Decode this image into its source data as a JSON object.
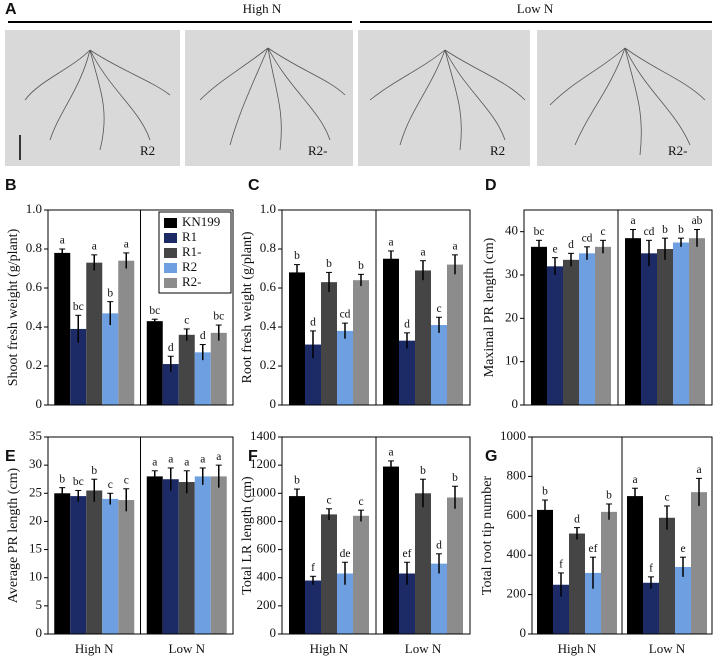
{
  "panel_a": {
    "label": "A",
    "conditions": [
      "High N",
      "Low N"
    ],
    "images": [
      "R2",
      "R2-",
      "R2",
      "R2-"
    ]
  },
  "chart_data": [
    {
      "type": "bar",
      "panel": "B",
      "ylabel": "Shoot fresh weight (g/plant)",
      "categories": [
        null,
        null
      ],
      "ylim": [
        0,
        1
      ],
      "yticks": [
        0,
        0.2,
        0.4,
        0.6,
        0.8,
        {
          "value": 1,
          "label": "1.0"
        }
      ],
      "legend": "upper right",
      "series": [
        {
          "name": "KN199",
          "color": "#000000",
          "values": [
            0.78,
            0.43
          ],
          "errors": [
            0.02,
            0.01
          ],
          "letters": [
            "a",
            "bc"
          ]
        },
        {
          "name": "R1",
          "color": "#1c2a66",
          "values": [
            0.39,
            0.21
          ],
          "errors": [
            0.07,
            0.04
          ],
          "letters": [
            "bc",
            "d"
          ]
        },
        {
          "name": "R1-",
          "color": "#454545",
          "values": [
            0.73,
            0.36
          ],
          "errors": [
            0.04,
            0.03
          ],
          "letters": [
            "a",
            "c"
          ]
        },
        {
          "name": "R2",
          "color": "#6e9fe0",
          "values": [
            0.47,
            0.27
          ],
          "errors": [
            0.06,
            0.04
          ],
          "letters": [
            "b",
            "d"
          ]
        },
        {
          "name": "R2-",
          "color": "#8c8c8c",
          "values": [
            0.74,
            0.37
          ],
          "errors": [
            0.04,
            0.04
          ],
          "letters": [
            "a",
            "bc"
          ]
        }
      ]
    },
    {
      "type": "bar",
      "panel": "C",
      "ylabel": "Root fresh weight (g/plant)",
      "categories": [
        null,
        null
      ],
      "ylim": [
        0,
        1
      ],
      "yticks": [
        0,
        0.2,
        0.4,
        0.6,
        0.8,
        {
          "value": 1,
          "label": "1.0"
        }
      ],
      "series": [
        {
          "color": "#000000",
          "values": [
            0.68,
            0.75
          ],
          "errors": [
            0.04,
            0.04
          ],
          "letters": [
            "b",
            "a"
          ]
        },
        {
          "color": "#1c2a66",
          "values": [
            0.31,
            0.33
          ],
          "errors": [
            0.07,
            0.04
          ],
          "letters": [
            "d",
            "d"
          ]
        },
        {
          "color": "#454545",
          "values": [
            0.63,
            0.69
          ],
          "errors": [
            0.05,
            0.05
          ],
          "letters": [
            "b",
            "a"
          ]
        },
        {
          "color": "#6e9fe0",
          "values": [
            0.38,
            0.41
          ],
          "errors": [
            0.04,
            0.04
          ],
          "letters": [
            "cd",
            "c"
          ]
        },
        {
          "color": "#8c8c8c",
          "values": [
            0.64,
            0.72
          ],
          "errors": [
            0.03,
            0.05
          ],
          "letters": [
            "b",
            "a"
          ]
        }
      ]
    },
    {
      "type": "bar",
      "panel": "D",
      "ylabel": "Maximal PR length (cm)",
      "categories": [
        null,
        null
      ],
      "ylim": [
        0,
        45
      ],
      "yticks": [
        0,
        10,
        20,
        30,
        40
      ],
      "series": [
        {
          "color": "#000000",
          "values": [
            36.5,
            38.5
          ],
          "errors": [
            1.5,
            2
          ],
          "letters": [
            "bc",
            "a"
          ]
        },
        {
          "color": "#1c2a66",
          "values": [
            32,
            35
          ],
          "errors": [
            2,
            3
          ],
          "letters": [
            "e",
            "cd"
          ]
        },
        {
          "color": "#454545",
          "values": [
            33.5,
            36
          ],
          "errors": [
            1.5,
            2.5
          ],
          "letters": [
            "d",
            "b"
          ]
        },
        {
          "color": "#6e9fe0",
          "values": [
            35,
            37.5
          ],
          "errors": [
            1.5,
            1
          ],
          "letters": [
            "cd",
            "b"
          ]
        },
        {
          "color": "#8c8c8c",
          "values": [
            36.5,
            38.5
          ],
          "errors": [
            1.5,
            2
          ],
          "letters": [
            "c",
            "ab"
          ]
        }
      ]
    },
    {
      "type": "bar",
      "panel": "E",
      "ylabel": "Average PR length (cm)",
      "categories": [
        "High N",
        "Low N"
      ],
      "ylim": [
        0,
        35
      ],
      "yticks": [
        0,
        5,
        10,
        15,
        20,
        25,
        30,
        35
      ],
      "series": [
        {
          "color": "#000000",
          "values": [
            25,
            28
          ],
          "errors": [
            1,
            1
          ],
          "letters": [
            "b",
            "a"
          ]
        },
        {
          "color": "#1c2a66",
          "values": [
            24.5,
            27.5
          ],
          "errors": [
            1,
            2
          ],
          "letters": [
            "bc",
            "a"
          ]
        },
        {
          "color": "#454545",
          "values": [
            25.5,
            27
          ],
          "errors": [
            2,
            2
          ],
          "letters": [
            "b",
            "a"
          ]
        },
        {
          "color": "#6e9fe0",
          "values": [
            24,
            28
          ],
          "errors": [
            1,
            1.5
          ],
          "letters": [
            "c",
            "a"
          ]
        },
        {
          "color": "#8c8c8c",
          "values": [
            23.8,
            28
          ],
          "errors": [
            2,
            2
          ],
          "letters": [
            "c",
            "a"
          ]
        }
      ]
    },
    {
      "type": "bar",
      "panel": "F",
      "ylabel": "Total LR length (cm)",
      "categories": [
        "High N",
        "Low N"
      ],
      "ylim": [
        0,
        1400
      ],
      "yticks": [
        0,
        200,
        400,
        600,
        800,
        1000,
        1200,
        1400
      ],
      "series": [
        {
          "color": "#000000",
          "values": [
            980,
            1190
          ],
          "errors": [
            50,
            40
          ],
          "letters": [
            "b",
            "a"
          ]
        },
        {
          "color": "#1c2a66",
          "values": [
            380,
            430
          ],
          "errors": [
            30,
            80
          ],
          "letters": [
            "f",
            "ef"
          ]
        },
        {
          "color": "#454545",
          "values": [
            850,
            1000
          ],
          "errors": [
            40,
            100
          ],
          "letters": [
            "c",
            "b"
          ]
        },
        {
          "color": "#6e9fe0",
          "values": [
            430,
            500
          ],
          "errors": [
            80,
            70
          ],
          "letters": [
            "de",
            "d"
          ]
        },
        {
          "color": "#8c8c8c",
          "values": [
            840,
            970
          ],
          "errors": [
            40,
            80
          ],
          "letters": [
            "c",
            "b"
          ]
        }
      ]
    },
    {
      "type": "bar",
      "panel": "G",
      "ylabel": "Total root tip number",
      "categories": [
        "High N",
        "Low N"
      ],
      "ylim": [
        0,
        1000
      ],
      "yticks": [
        0,
        200,
        400,
        600,
        800,
        1000
      ],
      "series": [
        {
          "color": "#000000",
          "values": [
            630,
            700
          ],
          "errors": [
            50,
            40
          ],
          "letters": [
            "b",
            "a"
          ]
        },
        {
          "color": "#1c2a66",
          "values": [
            250,
            260
          ],
          "errors": [
            60,
            30
          ],
          "letters": [
            "f",
            "f"
          ]
        },
        {
          "color": "#454545",
          "values": [
            510,
            590
          ],
          "errors": [
            30,
            60
          ],
          "letters": [
            "d",
            "c"
          ]
        },
        {
          "color": "#6e9fe0",
          "values": [
            310,
            340
          ],
          "errors": [
            80,
            50
          ],
          "letters": [
            "ef",
            "e"
          ]
        },
        {
          "color": "#8c8c8c",
          "values": [
            620,
            720
          ],
          "errors": [
            40,
            70
          ],
          "letters": [
            "b",
            "a"
          ]
        }
      ]
    }
  ]
}
